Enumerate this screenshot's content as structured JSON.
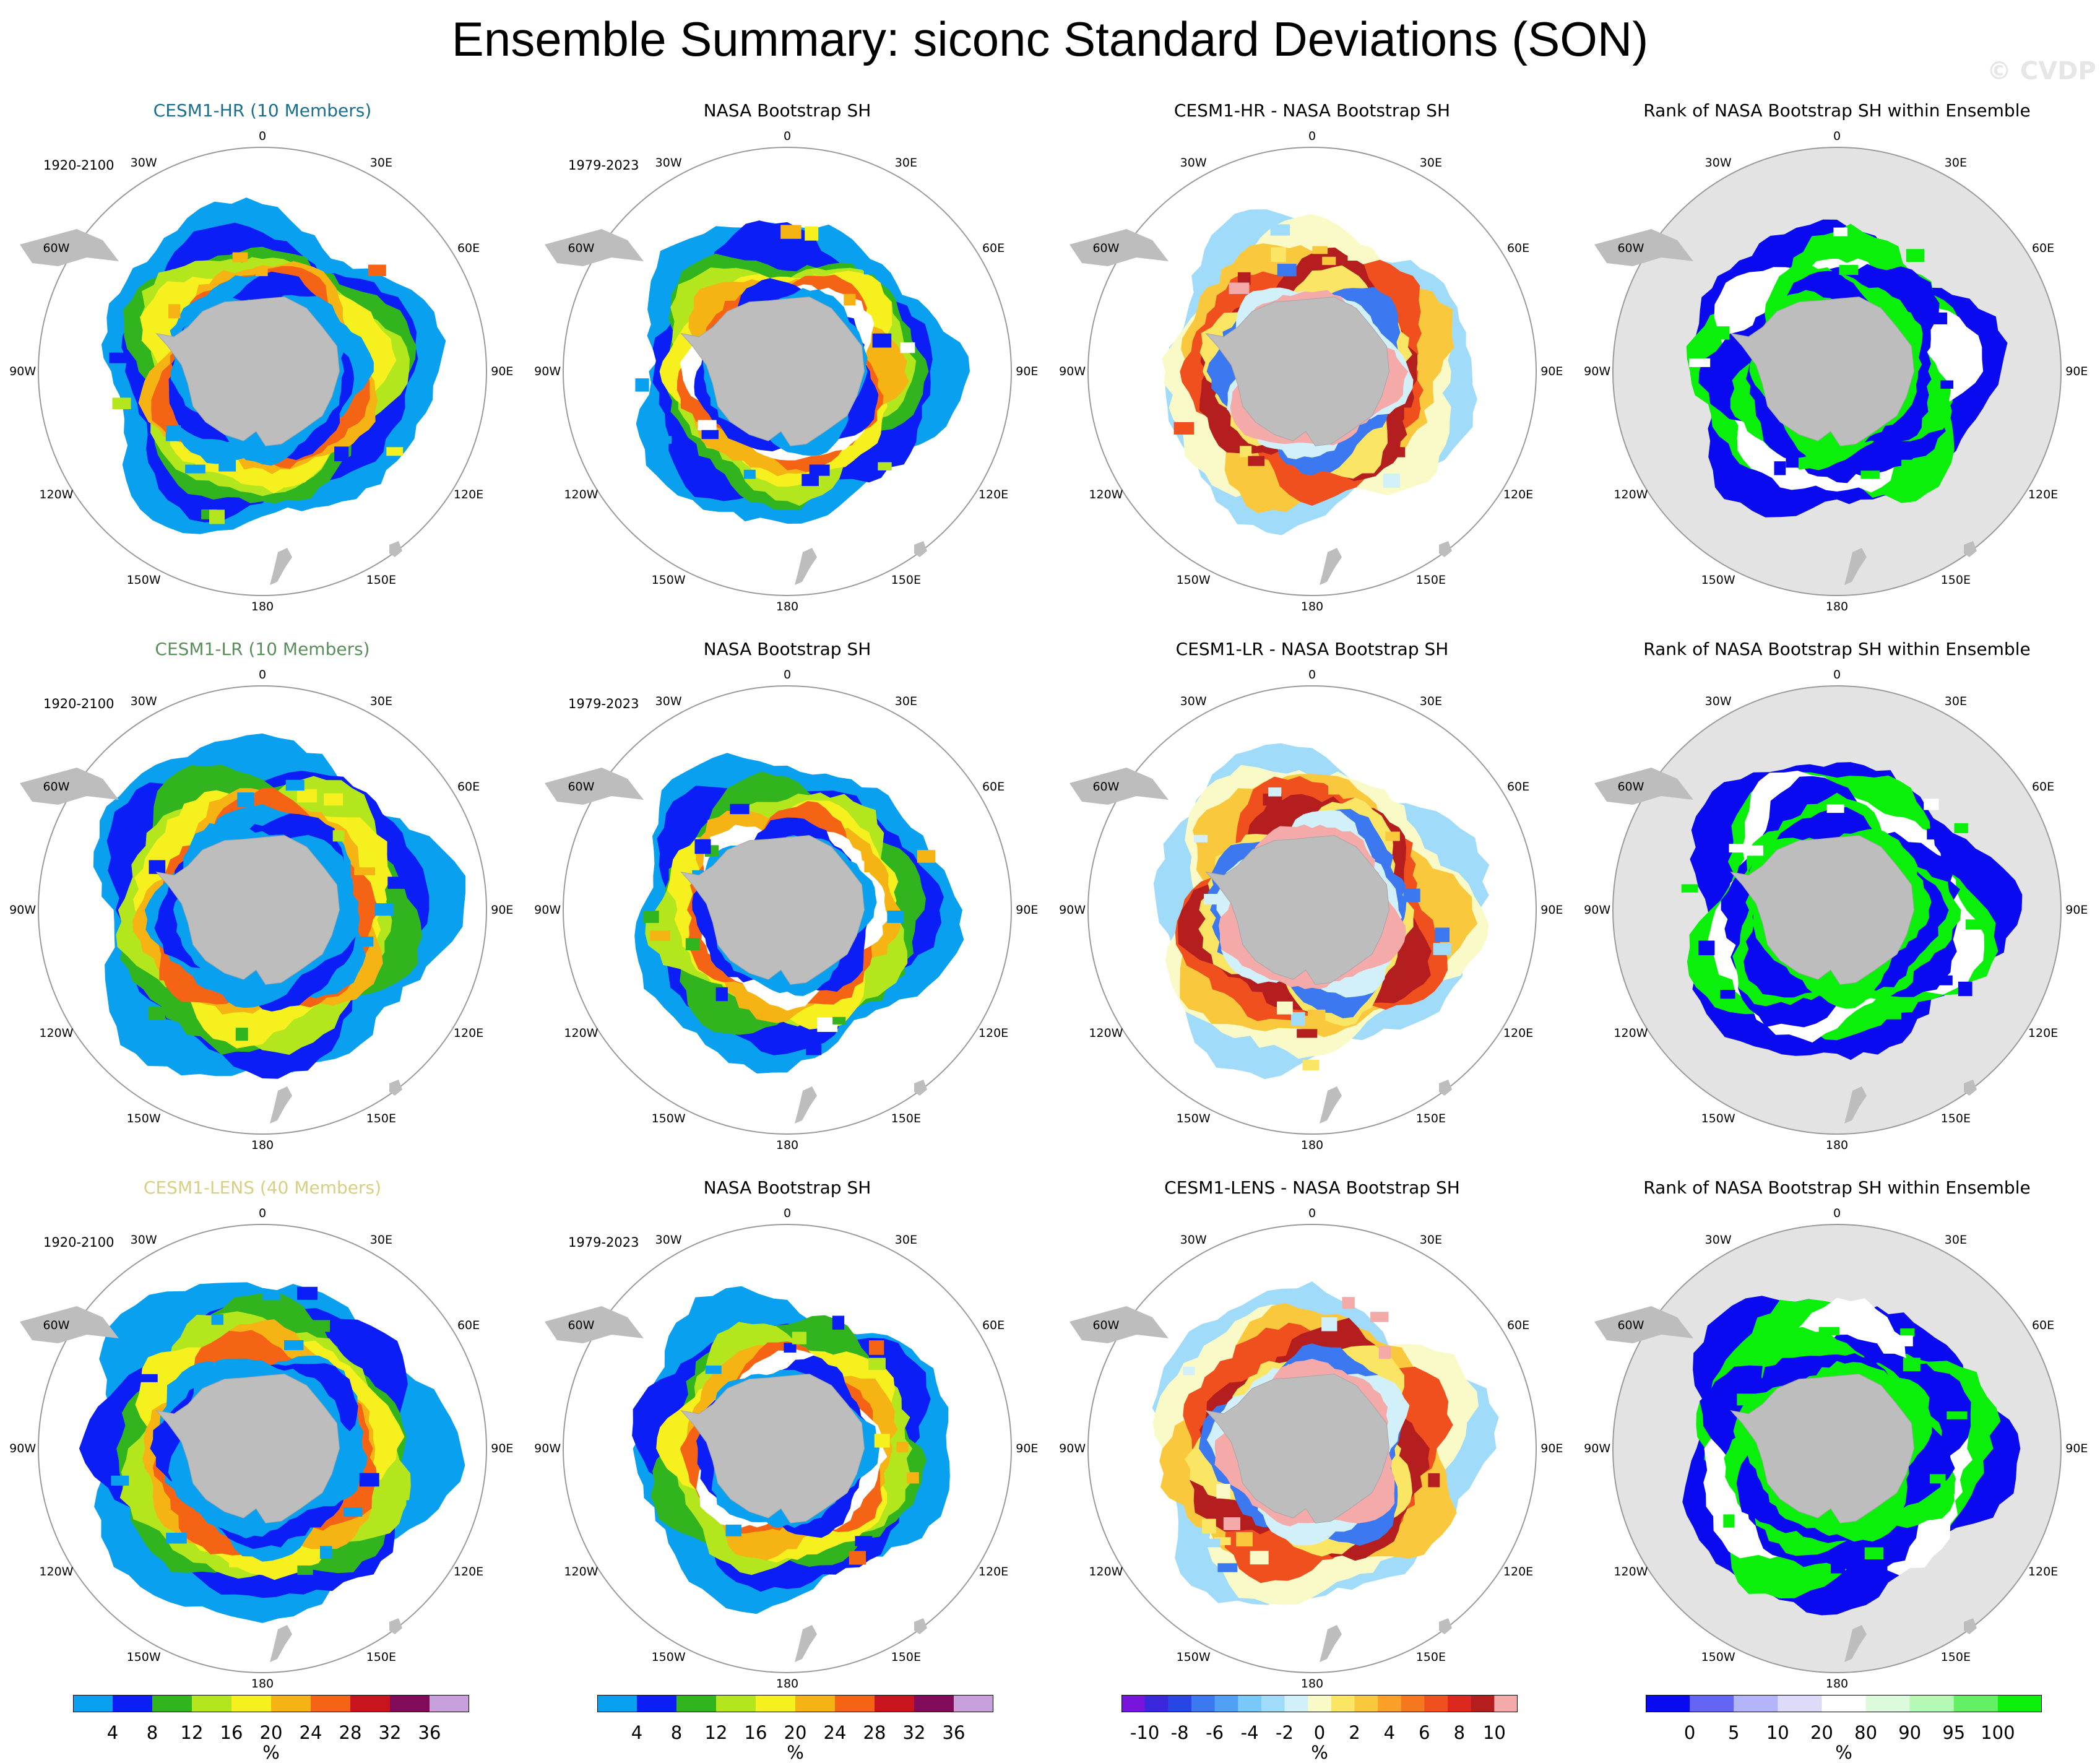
{
  "title": "Ensemble Summary: siconc Standard Deviations (SON)",
  "watermark": "© CVDP",
  "lon_labels": [
    "0",
    "30E",
    "60E",
    "90E",
    "120E",
    "150E",
    "180",
    "150W",
    "120W",
    "90W",
    "60W",
    "30W"
  ],
  "colors": {
    "land": "#bdbdbd",
    "rank_background": "#e3e3e3",
    "circle": "#9a9a9a"
  },
  "rows": [
    {
      "panels": [
        {
          "title": "CESM1-HR (10 Members)",
          "title_color": "#1a6e8e",
          "period": "1920-2100",
          "kind": "std",
          "ring_scale": 1.05,
          "ring_rot": 10
        },
        {
          "title": "NASA Bootstrap SH",
          "title_color": "#000000",
          "period": "1979-2023",
          "kind": "obs",
          "ring_scale": 1.0,
          "ring_rot": 0
        },
        {
          "title": "CESM1-HR - NASA Bootstrap SH",
          "title_color": "#000000",
          "period": "",
          "kind": "diff",
          "ring_scale": 1.0,
          "ring_rot": 0
        },
        {
          "title": "Rank of NASA Bootstrap SH within Ensemble",
          "title_color": "#000000",
          "period": "",
          "kind": "rank",
          "ring_scale": 1.0,
          "ring_rot": 0
        }
      ]
    },
    {
      "panels": [
        {
          "title": "CESM1-LR (10 Members)",
          "title_color": "#5c8e5c",
          "period": "1920-2100",
          "kind": "std",
          "ring_scale": 1.12,
          "ring_rot": 30
        },
        {
          "title": "NASA Bootstrap SH",
          "title_color": "#000000",
          "period": "1979-2023",
          "kind": "obs",
          "ring_scale": 1.0,
          "ring_rot": 0
        },
        {
          "title": "CESM1-LR - NASA Bootstrap SH",
          "title_color": "#000000",
          "period": "",
          "kind": "diff",
          "ring_scale": 1.05,
          "ring_rot": 40
        },
        {
          "title": "Rank of NASA Bootstrap SH within Ensemble",
          "title_color": "#000000",
          "period": "",
          "kind": "rank",
          "ring_scale": 1.05,
          "ring_rot": 70
        }
      ]
    },
    {
      "panels": [
        {
          "title": "CESM1-LENS (40 Members)",
          "title_color": "#d8cf82",
          "period": "1920-2100",
          "kind": "std",
          "ring_scale": 1.12,
          "ring_rot": 60
        },
        {
          "title": "NASA Bootstrap SH",
          "title_color": "#000000",
          "period": "1979-2023",
          "kind": "obs",
          "ring_scale": 1.0,
          "ring_rot": 0
        },
        {
          "title": "CESM1-LENS - NASA Bootstrap SH",
          "title_color": "#000000",
          "period": "",
          "kind": "diff",
          "ring_scale": 1.05,
          "ring_rot": 90
        },
        {
          "title": "Rank of NASA Bootstrap SH within Ensemble",
          "title_color": "#000000",
          "period": "",
          "kind": "rank",
          "ring_scale": 1.08,
          "ring_rot": 120
        }
      ]
    }
  ],
  "colorbars": [
    {
      "kind": "std",
      "unit": "%",
      "labels": [
        "4",
        "8",
        "12",
        "16",
        "20",
        "24",
        "28",
        "32",
        "36"
      ],
      "colors": [
        "#0aa0f0",
        "#0a1ef5",
        "#32b41e",
        "#b4e61e",
        "#f5f01e",
        "#f5b414",
        "#f56414",
        "#c8141e",
        "#820a5a",
        "#c8a0dc"
      ]
    },
    {
      "kind": "std",
      "unit": "%",
      "labels": [
        "4",
        "8",
        "12",
        "16",
        "20",
        "24",
        "28",
        "32",
        "36"
      ],
      "colors": [
        "#0aa0f0",
        "#0a1ef5",
        "#32b41e",
        "#b4e61e",
        "#f5f01e",
        "#f5b414",
        "#f56414",
        "#c8141e",
        "#820a5a",
        "#c8a0dc"
      ]
    },
    {
      "kind": "diff",
      "unit": "%",
      "labels": [
        "-10",
        "-8",
        "-6",
        "-4",
        "-2",
        "0",
        "2",
        "4",
        "6",
        "8",
        "10"
      ],
      "colors": [
        "#7814dc",
        "#3c28dc",
        "#2846e6",
        "#3c78f0",
        "#50a0f5",
        "#78c8fa",
        "#a0dcfa",
        "#d2f0fa",
        "#fafac8",
        "#fae664",
        "#fac83c",
        "#faa028",
        "#f5781e",
        "#f0501e",
        "#dc281e",
        "#b41e1e",
        "#f5aaaa"
      ]
    },
    {
      "kind": "rank",
      "unit": "%",
      "labels": [
        "0",
        "5",
        "10",
        "20",
        "80",
        "90",
        "95",
        "100"
      ],
      "colors": [
        "#0a0af0",
        "#6464f5",
        "#b4b4fa",
        "#dcdcfa",
        "#ffffff",
        "#dcfadc",
        "#b4fab4",
        "#64f064",
        "#0af00a"
      ]
    }
  ],
  "chart_data": {
    "type": "heatmap",
    "title": "Ensemble Summary: siconc Standard Deviations (SON)",
    "variable": "siconc",
    "season": "SON",
    "units": "%",
    "projection": "south polar stereographic",
    "panels": [
      {
        "row": 1,
        "col": 1,
        "title": "CESM1-HR (10 Members)",
        "period": "1920-2100",
        "field": "ensemble-mean std dev",
        "approx_max": 36
      },
      {
        "row": 1,
        "col": 2,
        "title": "NASA Bootstrap SH",
        "period": "1979-2023",
        "field": "observed std dev",
        "approx_max": 32
      },
      {
        "row": 1,
        "col": 3,
        "title": "CESM1-HR - NASA Bootstrap SH",
        "field": "difference",
        "range": [
          -10,
          10
        ]
      },
      {
        "row": 1,
        "col": 4,
        "title": "Rank of NASA Bootstrap SH within Ensemble",
        "field": "rank percentile",
        "range": [
          0,
          100
        ]
      },
      {
        "row": 2,
        "col": 1,
        "title": "CESM1-LR (10 Members)",
        "period": "1920-2100",
        "field": "ensemble-mean std dev",
        "approx_max": 28
      },
      {
        "row": 2,
        "col": 2,
        "title": "NASA Bootstrap SH",
        "period": "1979-2023",
        "field": "observed std dev",
        "approx_max": 32
      },
      {
        "row": 2,
        "col": 3,
        "title": "CESM1-LR - NASA Bootstrap SH",
        "field": "difference",
        "range": [
          -10,
          10
        ]
      },
      {
        "row": 2,
        "col": 4,
        "title": "Rank of NASA Bootstrap SH within Ensemble",
        "field": "rank percentile",
        "range": [
          0,
          100
        ]
      },
      {
        "row": 3,
        "col": 1,
        "title": "CESM1-LENS (40 Members)",
        "period": "1920-2100",
        "field": "ensemble-mean std dev",
        "approx_max": 28
      },
      {
        "row": 3,
        "col": 2,
        "title": "NASA Bootstrap SH",
        "period": "1979-2023",
        "field": "observed std dev",
        "approx_max": 32
      },
      {
        "row": 3,
        "col": 3,
        "title": "CESM1-LENS - NASA Bootstrap SH",
        "field": "difference",
        "range": [
          -10,
          10
        ]
      },
      {
        "row": 3,
        "col": 4,
        "title": "Rank of NASA Bootstrap SH within Ensemble",
        "field": "rank percentile",
        "range": [
          0,
          100
        ]
      }
    ],
    "colorbars": {
      "std_levels": [
        4,
        8,
        12,
        16,
        20,
        24,
        28,
        32,
        36
      ],
      "diff_levels": [
        -10,
        -8,
        -6,
        -4,
        -2,
        0,
        2,
        4,
        6,
        8,
        10
      ],
      "rank_levels": [
        0,
        5,
        10,
        20,
        80,
        90,
        95,
        100
      ]
    }
  }
}
